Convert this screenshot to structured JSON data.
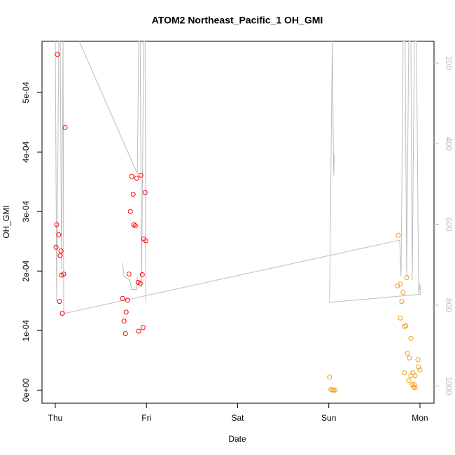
{
  "chart_data": {
    "type": "scatter",
    "title": "ATOM2 Northeast_Pacific_1 OH_GMI",
    "x_label": "Date",
    "y_label": "OH_GMI",
    "xlim": [
      -0.146,
      4.154
    ],
    "xticks": [
      {
        "value": 0,
        "label": "Thu"
      },
      {
        "value": 1,
        "label": "Fri"
      },
      {
        "value": 2,
        "label": "Sat"
      },
      {
        "value": 3,
        "label": "Sun"
      },
      {
        "value": 4,
        "label": "Mon"
      }
    ],
    "ylim": [
      -2.2e-05,
      0.000586
    ],
    "yticks": [
      {
        "value": 0,
        "label": "0e+00"
      },
      {
        "value": 0.0001,
        "label": "1e-04"
      },
      {
        "value": 0.0002,
        "label": "2e-04"
      },
      {
        "value": 0.0003,
        "label": "3e-04"
      },
      {
        "value": 0.0004,
        "label": "4e-04"
      },
      {
        "value": 0.0005,
        "label": "5e-04"
      }
    ],
    "y2lim": [
      1043,
      146
    ],
    "y2ticks": [
      200,
      400,
      600,
      800,
      1000
    ],
    "y2_color": "#bebebe",
    "series": [
      {
        "type": "line",
        "axis": "y2",
        "color": "#bebebe",
        "x": [
          0,
          0.015,
          0.038,
          0.054,
          0.069,
          0.085,
          0.092,
          3.777,
          3.792,
          3.815,
          3.838,
          3.854,
          3.877,
          3.9,
          3.915,
          3.938,
          3.962,
          3.985,
          4.0,
          4.008,
          3.008,
          3.038,
          3.054,
          3.062,
          null,
          0.262,
          0.9,
          0.915,
          0.931,
          0.946,
          0.969,
          0.985,
          0.992,
          null,
          0.738,
          0.754,
          0.815,
          0.838,
          0.892,
          0.9
        ],
        "values": [
          146,
          790,
          146,
          146,
          712,
          146,
          821,
          639,
          729,
          146,
          146,
          729,
          146,
          146,
          738,
          146,
          146,
          773,
          747,
          773,
          793,
          146,
          478,
          426,
          null,
          146,
          474,
          146,
          146,
          755,
          146,
          146,
          790,
          null,
          695,
          729,
          738,
          761,
          761,
          729
        ]
      },
      {
        "type": "points",
        "color": "#ff0000",
        "x": [
          0.023,
          0.108,
          0.015,
          0.038,
          0.008,
          0.062,
          0.054,
          0.092,
          0.069,
          0.046,
          0.077,
          0.838,
          0.892,
          0.938,
          0.854,
          0.985,
          0.823,
          0.862,
          0.877,
          0.969,
          0.992,
          0.808,
          0.954,
          0.908,
          0.931,
          0.738,
          0.792,
          0.777,
          0.754,
          0.962,
          0.915,
          0.769
        ],
        "values": [
          0.000564,
          0.000441,
          0.000278,
          0.000261,
          0.00024,
          0.000234,
          0.000226,
          0.000195,
          0.000193,
          0.000149,
          0.000129,
          0.000359,
          0.000356,
          0.000361,
          0.000329,
          0.000332,
          0.0003,
          0.000278,
          0.000276,
          0.000254,
          0.000251,
          0.000195,
          0.000194,
          0.000181,
          0.000179,
          0.000154,
          0.000151,
          0.000131,
          0.000116,
          0.000105,
          9.9e-05,
          9.5e-05
        ]
      },
      {
        "type": "points",
        "color": "#f39c12",
        "x": [
          3.008,
          3.023,
          3.038,
          3.054,
          3.069,
          3.762,
          3.754,
          3.785,
          3.854,
          3.815,
          3.8,
          3.785,
          3.831,
          3.846,
          3.9,
          3.862,
          3.885,
          3.977,
          3.831,
          3.923,
          3.985,
          4.0,
          3.946,
          3.9,
          3.877,
          3.915,
          3.938,
          3.931,
          3.946
        ],
        "values": [
          2.2e-05,
          1e-06,
          0,
          0,
          0,
          0.00026,
          0.000175,
          0.000178,
          0.000189,
          0.000164,
          0.000149,
          0.000121,
          0.000107,
          0.000108,
          8.7e-05,
          6.2e-05,
          5.4e-05,
          5.1e-05,
          2.9e-05,
          2.9e-05,
          3.9e-05,
          3.4e-05,
          2.4e-05,
          2.4e-05,
          1.6e-05,
          9e-06,
          9e-06,
          5e-06,
          4e-06
        ]
      }
    ]
  }
}
